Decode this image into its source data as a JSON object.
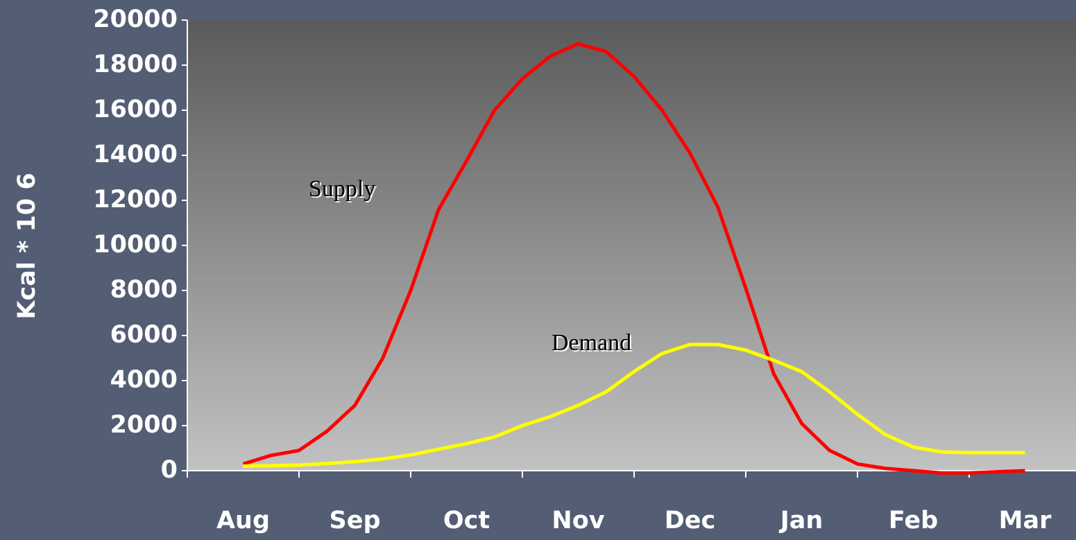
{
  "chart_data": {
    "type": "line",
    "ylabel": "Kcal * 10 6",
    "categories": [
      "Aug",
      "Sep",
      "Oct",
      "Nov",
      "Dec",
      "Jan",
      "Feb",
      "Mar"
    ],
    "x": [
      0.5,
      0.75,
      1.0,
      1.25,
      1.5,
      1.75,
      2.0,
      2.25,
      2.5,
      2.75,
      3.0,
      3.25,
      3.5,
      3.75,
      4.0,
      4.25,
      4.5,
      4.75,
      5.0,
      5.25,
      5.5,
      5.75,
      6.0,
      6.25,
      6.5,
      6.75,
      7.0,
      7.25,
      7.5
    ],
    "xlim": [
      0,
      8
    ],
    "series": [
      {
        "name": "Supply",
        "color": "#ff0000",
        "values": [
          300,
          680,
          900,
          1750,
          2900,
          5000,
          8000,
          11600,
          13750,
          16000,
          17400,
          18400,
          18950,
          18600,
          17500,
          16000,
          14100,
          11700,
          8100,
          4300,
          2100,
          900,
          300,
          100,
          0,
          -100,
          -100,
          -50,
          0
        ]
      },
      {
        "name": "Demand",
        "color": "#ffff00",
        "values": [
          200,
          220,
          250,
          320,
          400,
          520,
          700,
          950,
          1200,
          1500,
          2000,
          2400,
          2900,
          3500,
          4400,
          5200,
          5600,
          5600,
          5350,
          4900,
          4400,
          3500,
          2500,
          1600,
          1050,
          830,
          800,
          800,
          800
        ]
      }
    ],
    "annotations": [
      "Supply",
      "Demand"
    ],
    "ylim": [
      0,
      20000
    ],
    "yticks": [
      0,
      2000,
      4000,
      6000,
      8000,
      10000,
      12000,
      14000,
      16000,
      18000,
      20000
    ],
    "grid": false
  }
}
